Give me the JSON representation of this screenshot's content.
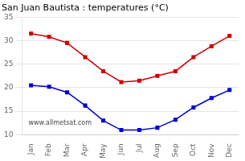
{
  "chart_data": {
    "type": "line",
    "title": "San Juan Bautista : temperatures (°C)",
    "categories": [
      "Jan",
      "Feb",
      "Mar",
      "Apr",
      "May",
      "Jun",
      "Jul",
      "Aug",
      "Sep",
      "Oct",
      "Nov",
      "Dec"
    ],
    "series": [
      {
        "color": "#cc0000",
        "values": [
          31.5,
          30.8,
          29.5,
          26.5,
          23.5,
          21.2,
          21.5,
          22.5,
          23.5,
          26.5,
          28.8,
          31.0
        ]
      },
      {
        "color": "#0000cc",
        "values": [
          20.5,
          20.2,
          19.0,
          16.2,
          13.0,
          11.0,
          11.0,
          11.5,
          13.2,
          15.8,
          17.8,
          19.5
        ]
      }
    ],
    "ylim": [
      10,
      35
    ],
    "yticks": [
      10,
      15,
      20,
      25,
      30,
      35
    ],
    "grid": "y",
    "marker": "square",
    "line_style": "solid",
    "annotations": [
      "www.allmetsat.com"
    ]
  }
}
